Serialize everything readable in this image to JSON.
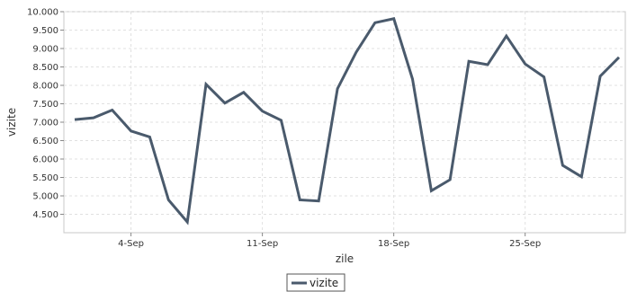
{
  "chart_data": {
    "type": "line",
    "xlabel": "zile",
    "ylabel": "vizite",
    "ylim": [
      4000,
      10000
    ],
    "y_ticks": [
      4500,
      5000,
      5500,
      6000,
      6500,
      7000,
      7500,
      8000,
      8500,
      9000,
      9500,
      10000
    ],
    "y_tick_labels": [
      "4.500",
      "5.000",
      "5.500",
      "6.000",
      "6.500",
      "7.000",
      "7.500",
      "8.000",
      "8.500",
      "9.000",
      "9.500",
      "10.000"
    ],
    "x_ticks": [
      "2023-09-04",
      "2023-09-11",
      "2023-09-18",
      "2023-09-25"
    ],
    "x_tick_labels": [
      "4-Sep",
      "11-Sep",
      "18-Sep",
      "25-Sep"
    ],
    "xlim": [
      "2023-09-01",
      "2023-09-30"
    ],
    "grid": true,
    "legend": "bottom-center",
    "series": [
      {
        "name": "vizite",
        "color": "#4a5a6c",
        "x": [
          "2023-09-01",
          "2023-09-02",
          "2023-09-03",
          "2023-09-04",
          "2023-09-05",
          "2023-09-06",
          "2023-09-07",
          "2023-09-08",
          "2023-09-09",
          "2023-09-10",
          "2023-09-11",
          "2023-09-12",
          "2023-09-13",
          "2023-09-14",
          "2023-09-15",
          "2023-09-16",
          "2023-09-17",
          "2023-09-18",
          "2023-09-19",
          "2023-09-20",
          "2023-09-21",
          "2023-09-22",
          "2023-09-23",
          "2023-09-24",
          "2023-09-25",
          "2023-09-26",
          "2023-09-27",
          "2023-09-28",
          "2023-09-29",
          "2023-09-30"
        ],
        "values": [
          7070,
          7120,
          7330,
          6760,
          6600,
          4890,
          4290,
          8030,
          7520,
          7810,
          7300,
          7050,
          4890,
          4860,
          7910,
          8900,
          9700,
          9810,
          8170,
          5140,
          5440,
          8650,
          8560,
          9340,
          8580,
          8230,
          5830,
          5520,
          8250,
          8760
        ]
      }
    ]
  }
}
